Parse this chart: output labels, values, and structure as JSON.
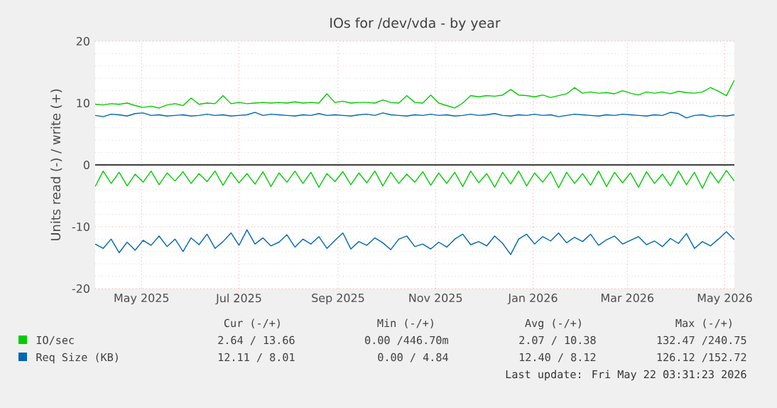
{
  "chart_data": {
    "type": "line",
    "title": "IOs for /dev/vda - by year",
    "ylabel": "Units read (-) / write (+)",
    "x": [
      "2025-04-17",
      "2025-04-22",
      "2025-04-27",
      "2025-05-02",
      "2025-05-07",
      "2025-05-12",
      "2025-05-17",
      "2025-05-22",
      "2025-05-27",
      "2025-06-01",
      "2025-06-06",
      "2025-06-11",
      "2025-06-16",
      "2025-06-21",
      "2025-06-26",
      "2025-07-01",
      "2025-07-06",
      "2025-07-11",
      "2025-07-16",
      "2025-07-21",
      "2025-07-26",
      "2025-07-31",
      "2025-08-05",
      "2025-08-10",
      "2025-08-15",
      "2025-08-20",
      "2025-08-25",
      "2025-08-30",
      "2025-09-04",
      "2025-09-09",
      "2025-09-14",
      "2025-09-19",
      "2025-09-24",
      "2025-09-29",
      "2025-10-04",
      "2025-10-09",
      "2025-10-14",
      "2025-10-19",
      "2025-10-24",
      "2025-10-29",
      "2025-11-03",
      "2025-11-08",
      "2025-11-13",
      "2025-11-18",
      "2025-11-23",
      "2025-11-28",
      "2025-12-03",
      "2025-12-08",
      "2025-12-13",
      "2025-12-18",
      "2025-12-23",
      "2025-12-28",
      "2026-01-02",
      "2026-01-07",
      "2026-01-12",
      "2026-01-17",
      "2026-01-22",
      "2026-01-27",
      "2026-02-01",
      "2026-02-06",
      "2026-02-11",
      "2026-02-16",
      "2026-02-21",
      "2026-02-26",
      "2026-03-03",
      "2026-03-08",
      "2026-03-13",
      "2026-03-18",
      "2026-03-23",
      "2026-03-28",
      "2026-04-02",
      "2026-04-07",
      "2026-04-12",
      "2026-04-17",
      "2026-04-22",
      "2026-04-27",
      "2026-05-02",
      "2026-05-07",
      "2026-05-12",
      "2026-05-17",
      "2026-05-22"
    ],
    "series": [
      {
        "name": "IO/sec",
        "color": "#00cc00",
        "values": [
          9.8,
          9.7,
          9.9,
          9.8,
          10.0,
          9.6,
          9.3,
          9.5,
          9.2,
          9.7,
          9.9,
          9.6,
          10.8,
          9.8,
          10.0,
          9.9,
          11.2,
          9.9,
          10.1,
          9.9,
          10.0,
          10.1,
          10.0,
          10.1,
          10.0,
          10.2,
          10.0,
          10.1,
          10.0,
          11.5,
          10.1,
          10.3,
          10.0,
          10.1,
          10.1,
          10.0,
          10.5,
          10.1,
          10.0,
          11.2,
          10.1,
          10.0,
          11.3,
          10.0,
          9.6,
          9.2,
          10.0,
          11.2,
          11.0,
          11.2,
          11.1,
          11.3,
          12.2,
          11.3,
          11.2,
          11.0,
          11.3,
          10.9,
          11.2,
          11.5,
          12.5,
          11.6,
          11.8,
          11.6,
          11.7,
          11.5,
          12.0,
          11.6,
          11.3,
          11.8,
          11.6,
          11.8,
          11.5,
          11.9,
          11.7,
          11.6,
          11.8,
          12.5,
          11.9,
          11.2,
          13.7
        ]
      },
      {
        "color": "#00cc00",
        "values": [
          -3.5,
          -1.0,
          -3.0,
          -1.2,
          -3.4,
          -1.5,
          -2.8,
          -1.0,
          -3.2,
          -1.3,
          -2.6,
          -1.1,
          -3.0,
          -1.4,
          -2.7,
          -1.0,
          -3.3,
          -1.2,
          -2.9,
          -1.4,
          -3.1,
          -1.1,
          -3.5,
          -1.3,
          -2.8,
          -1.0,
          -3.0,
          -1.2,
          -3.6,
          -1.4,
          -2.7,
          -1.1,
          -3.2,
          -1.3,
          -2.9,
          -1.0,
          -3.4,
          -1.2,
          -3.0,
          -1.5,
          -2.8,
          -1.1,
          -3.3,
          -1.3,
          -3.0,
          -1.2,
          -3.5,
          -1.0,
          -2.9,
          -1.4,
          -3.6,
          -1.2,
          -3.1,
          -1.0,
          -3.4,
          -1.3,
          -2.8,
          -1.1,
          -3.7,
          -1.2,
          -3.0,
          -1.4,
          -3.3,
          -1.0,
          -3.5,
          -1.2,
          -2.9,
          -1.3,
          -3.6,
          -1.1,
          -3.0,
          -1.5,
          -3.4,
          -1.0,
          -3.2,
          -1.2,
          -3.8,
          -1.1,
          -2.9,
          -0.9,
          -2.6
        ]
      },
      {
        "name": "Req Size (KB)",
        "color": "#0066b3",
        "values": [
          8.0,
          7.8,
          8.2,
          8.1,
          7.9,
          8.3,
          8.4,
          8.0,
          8.1,
          7.9,
          8.0,
          8.1,
          7.9,
          8.0,
          8.2,
          8.0,
          8.1,
          7.9,
          8.0,
          8.1,
          8.5,
          8.0,
          8.2,
          8.1,
          8.0,
          7.9,
          8.1,
          8.0,
          8.3,
          8.0,
          8.1,
          8.0,
          7.9,
          8.1,
          8.2,
          8.0,
          8.4,
          8.1,
          8.0,
          7.9,
          8.1,
          8.0,
          8.2,
          8.0,
          8.1,
          7.9,
          8.0,
          8.2,
          8.0,
          8.1,
          8.3,
          8.0,
          7.9,
          8.1,
          8.0,
          8.2,
          8.0,
          8.1,
          7.8,
          8.0,
          8.2,
          8.1,
          8.0,
          7.9,
          8.1,
          8.0,
          8.2,
          8.1,
          8.0,
          7.9,
          8.1,
          8.0,
          8.5,
          8.3,
          7.6,
          8.0,
          8.1,
          7.8,
          8.0,
          7.9,
          8.1
        ]
      },
      {
        "color": "#0066b3",
        "values": [
          -12.8,
          -13.5,
          -12.0,
          -14.2,
          -12.5,
          -13.8,
          -12.2,
          -13.0,
          -11.5,
          -13.2,
          -12.0,
          -14.0,
          -11.8,
          -12.9,
          -11.2,
          -13.5,
          -12.4,
          -11.0,
          -13.0,
          -10.5,
          -12.8,
          -11.8,
          -13.1,
          -12.5,
          -11.3,
          -13.3,
          -12.0,
          -12.8,
          -11.6,
          -13.5,
          -12.2,
          -11.0,
          -13.6,
          -12.4,
          -13.0,
          -11.8,
          -12.6,
          -13.7,
          -12.0,
          -11.5,
          -13.2,
          -12.8,
          -13.6,
          -12.5,
          -13.3,
          -12.0,
          -11.2,
          -12.9,
          -12.4,
          -13.1,
          -11.5,
          -12.7,
          -14.5,
          -12.0,
          -11.2,
          -12.8,
          -11.6,
          -12.3,
          -11.0,
          -12.6,
          -11.7,
          -12.4,
          -11.2,
          -13.0,
          -12.1,
          -11.5,
          -12.8,
          -12.2,
          -11.6,
          -12.9,
          -12.3,
          -13.2,
          -11.9,
          -12.7,
          -11.1,
          -13.5,
          -12.4,
          -13.1,
          -12.0,
          -10.8,
          -12.1
        ]
      }
    ],
    "xlim": [
      "2025-04-17",
      "2026-05-22"
    ],
    "xticks": [
      {
        "value": "2025-05-16",
        "label": "May 2025"
      },
      {
        "value": "2025-07-16",
        "label": "Jul 2025"
      },
      {
        "value": "2025-09-16",
        "label": "Sep 2025"
      },
      {
        "value": "2025-11-16",
        "label": "Nov 2025"
      },
      {
        "value": "2026-01-16",
        "label": "Jan 2026"
      },
      {
        "value": "2026-03-16",
        "label": "Mar 2026"
      },
      {
        "value": "2026-05-16",
        "label": "May 2026"
      }
    ],
    "ylim": [
      -20,
      20
    ],
    "yticks": [
      -20,
      -10,
      0,
      10,
      20
    ],
    "ref_lines": [
      {
        "axis": "y",
        "value": 0,
        "color": "#000000"
      }
    ],
    "grid": true,
    "legend": "bottom",
    "marker": "none",
    "line_style": "solid",
    "annotations": [
      "Cur (-/+)",
      "Min (-/+)",
      "Avg (-/+)",
      "Max (-/+)",
      "2.64 / 13.66",
      "0.00 /446.70m",
      "2.07 / 10.38",
      "132.47 /240.75",
      "12.11 /  8.01",
      "0.00 /  4.84",
      "12.40 /  8.12",
      "126.12 /152.72",
      "Last update: Fri May 22 03:31:23 2026"
    ]
  }
}
